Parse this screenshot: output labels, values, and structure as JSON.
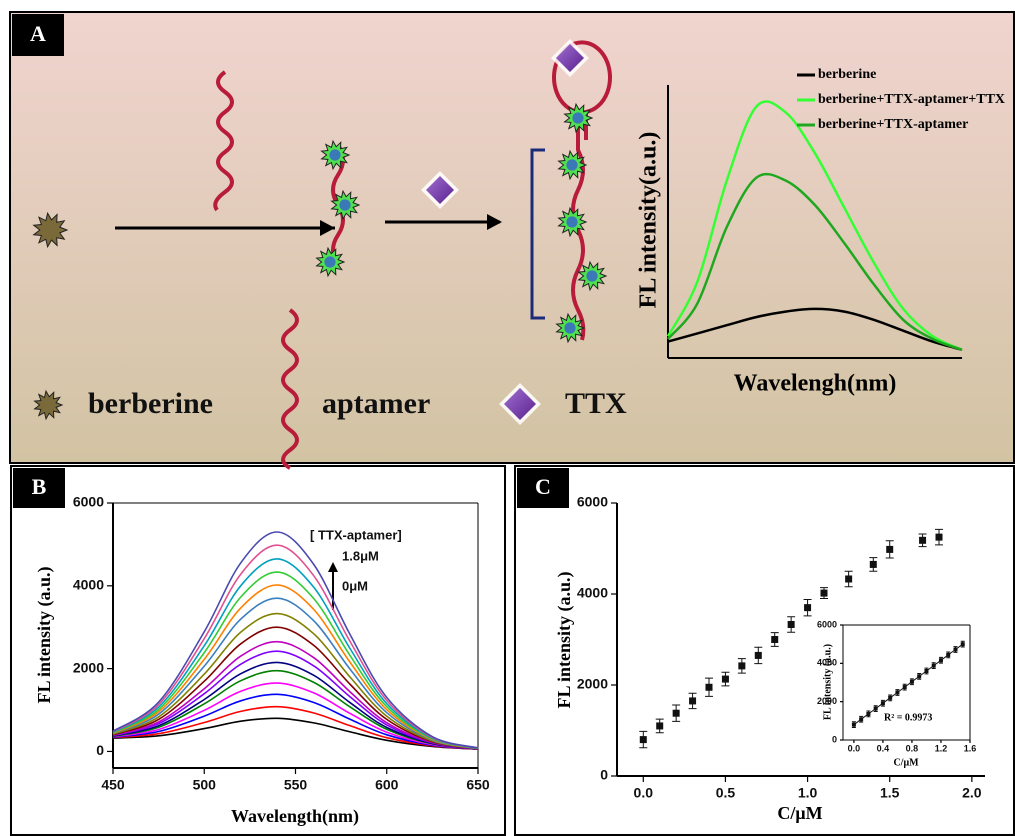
{
  "scheme": {
    "panel_label": "A",
    "labels": [
      "berberine",
      "aptamer",
      "TTX"
    ]
  },
  "chart_data": [
    {
      "type": "line",
      "panel": "A-inset",
      "xlabel": "Wavelengh(nm)",
      "ylabel": "FL intensity(a.u.)",
      "x": [
        0,
        1,
        2,
        3,
        4,
        5,
        6,
        7,
        8,
        9,
        10
      ],
      "xlim": [
        0,
        10
      ],
      "ylim": [
        0,
        100
      ],
      "series": [
        {
          "name": "berberine",
          "color": "#000000",
          "values": [
            6,
            9,
            12,
            15,
            17,
            18,
            17,
            14,
            10,
            6,
            3
          ]
        },
        {
          "name": "berberine+TTX-aptamer+TTX",
          "color": "#33ff33",
          "values": [
            8,
            28,
            65,
            92,
            90,
            75,
            55,
            35,
            18,
            8,
            3
          ]
        },
        {
          "name": "berberine+TTX-aptamer",
          "color": "#1fa81f",
          "values": [
            7,
            20,
            48,
            66,
            65,
            56,
            42,
            27,
            14,
            7,
            3
          ]
        }
      ]
    },
    {
      "type": "line",
      "panel_label": "B",
      "xlabel": "Wavelength(nm)",
      "ylabel": "FL intensity (a.u.)",
      "annotations": [
        "[ TTX-aptamer]",
        "1.8μM",
        "0μM"
      ],
      "x": [
        450,
        475,
        500,
        520,
        540,
        560,
        580,
        600,
        625,
        650
      ],
      "xlim": [
        450,
        650
      ],
      "xticks": [
        450,
        500,
        550,
        600,
        650
      ],
      "ylim": [
        -400,
        6000
      ],
      "yticks": [
        0,
        2000,
        4000,
        6000
      ],
      "series": [
        {
          "color": "#000000",
          "values": [
            322,
            378,
            552,
            730,
            800,
            690,
            472,
            268,
            121,
            54
          ]
        },
        {
          "color": "#ff0000",
          "values": [
            333,
            428,
            698,
            968,
            1080,
            928,
            618,
            332,
            136,
            56
          ]
        },
        {
          "color": "#0000ff",
          "values": [
            344,
            482,
            854,
            1223,
            1380,
            1183,
            774,
            401,
            151,
            58
          ]
        },
        {
          "color": "#ff00ff",
          "values": [
            354,
            531,
            994,
            1453,
            1650,
            1413,
            914,
            464,
            165,
            60
          ]
        },
        {
          "color": "#008000",
          "values": [
            365,
            585,
            1150,
            1708,
            1950,
            1668,
            1070,
            533,
            181,
            62
          ]
        },
        {
          "color": "#000080",
          "values": [
            372,
            621,
            1254,
            1878,
            2150,
            1838,
            1174,
            579,
            191,
            64
          ]
        },
        {
          "color": "#8000ff",
          "values": [
            382,
            670,
            1394,
            2107,
            2420,
            2067,
            1314,
            641,
            205,
            66
          ]
        },
        {
          "color": "#c000c0",
          "values": [
            391,
            711,
            1514,
            2303,
            2650,
            2263,
            1434,
            694,
            217,
            67
          ]
        },
        {
          "color": "#800000",
          "values": [
            404,
            774,
            1696,
            2600,
            3000,
            2560,
            1616,
            774,
            236,
            70
          ]
        },
        {
          "color": "#808000",
          "values": [
            416,
            833,
            1868,
            2881,
            3330,
            2841,
            1788,
            850,
            253,
            72
          ]
        },
        {
          "color": "#3a7fbf",
          "values": [
            430,
            900,
            2060,
            3195,
            3700,
            3155,
            1980,
            935,
            272,
            75
          ]
        },
        {
          "color": "#ff8000",
          "values": [
            441,
            958,
            2226,
            3467,
            4020,
            3427,
            2146,
            1009,
            289,
            77
          ]
        },
        {
          "color": "#33cc33",
          "values": [
            453,
            1013,
            2388,
            3731,
            4330,
            3691,
            2308,
            1080,
            305,
            79
          ]
        },
        {
          "color": "#00a0c0",
          "values": [
            465,
            1071,
            2554,
            4003,
            4650,
            3963,
            2474,
            1154,
            321,
            81
          ]
        },
        {
          "color": "#e05090",
          "values": [
            477,
            1130,
            2726,
            4283,
            4980,
            4243,
            2646,
            1229,
            339,
            83
          ]
        },
        {
          "color": "#4a4ab0",
          "values": [
            489,
            1188,
            2892,
            4555,
            5300,
            4515,
            2812,
            1303,
            355,
            86
          ]
        }
      ]
    },
    {
      "type": "scatter",
      "panel_label": "C",
      "xlabel": "C/μM",
      "ylabel": "FL intensity (a.u.)",
      "color": "#111111",
      "x": [
        0,
        0.1,
        0.2,
        0.3,
        0.4,
        0.5,
        0.6,
        0.7,
        0.8,
        0.9,
        1.0,
        1.1,
        1.25,
        1.4,
        1.5,
        1.7,
        1.8
      ],
      "values": [
        800,
        1100,
        1380,
        1650,
        1950,
        2130,
        2420,
        2650,
        3000,
        3330,
        3700,
        4020,
        4330,
        4650,
        4980,
        5180,
        5250
      ],
      "errors": [
        180,
        150,
        180,
        170,
        200,
        150,
        160,
        180,
        150,
        170,
        180,
        120,
        170,
        150,
        190,
        140,
        170
      ],
      "xlim": [
        -0.16,
        2.08
      ],
      "xticks": [
        {
          "value": 0,
          "label": "0.0"
        },
        {
          "value": 0.5,
          "label": "0.5"
        },
        {
          "value": 1,
          "label": "1.0"
        },
        {
          "value": 1.5,
          "label": "1.5"
        },
        {
          "value": 2,
          "label": "2.0"
        }
      ],
      "ylim": [
        0,
        6000
      ],
      "yticks": [
        0,
        2000,
        4000,
        6000
      ]
    },
    {
      "type": "scatter",
      "panel": "C-inset",
      "xlabel": "C/μM",
      "ylabel": "FL intensity (a.u.)",
      "annotation": "R² = 0.9973",
      "color": "#111111",
      "x": [
        0,
        0.1,
        0.2,
        0.3,
        0.4,
        0.5,
        0.6,
        0.7,
        0.8,
        0.9,
        1.0,
        1.1,
        1.2,
        1.3,
        1.4,
        1.5
      ],
      "values": [
        800,
        1080,
        1360,
        1640,
        1920,
        2200,
        2480,
        2760,
        3040,
        3320,
        3600,
        3880,
        4160,
        4440,
        4720,
        5000
      ],
      "errors": [
        150,
        150,
        150,
        150,
        150,
        150,
        150,
        150,
        150,
        150,
        150,
        150,
        150,
        150,
        150,
        150
      ],
      "xlim": [
        -0.15,
        1.6
      ],
      "xticks": [
        {
          "value": 0,
          "label": "0.0"
        },
        {
          "value": 0.4,
          "label": "0.4"
        },
        {
          "value": 0.8,
          "label": "0.8"
        },
        {
          "value": 1.2,
          "label": "1.2"
        },
        {
          "value": 1.6,
          "label": "1.6"
        }
      ],
      "ylim": [
        0,
        6000
      ],
      "yticks": [
        0,
        2000,
        4000,
        6000
      ]
    }
  ]
}
